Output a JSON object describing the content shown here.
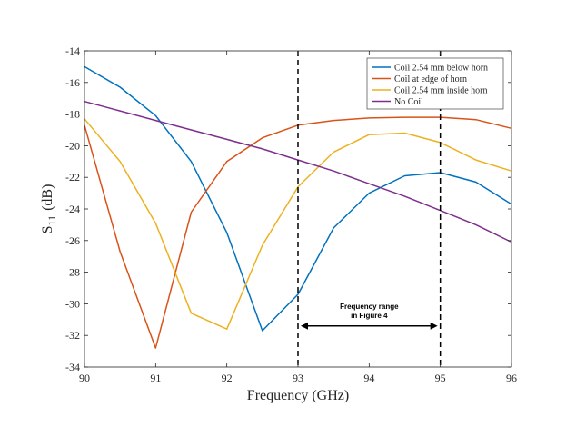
{
  "chart_data": {
    "type": "line",
    "title": "",
    "xlabel": "Frequency (GHz)",
    "ylabel_main": "S",
    "ylabel_sub": "11",
    "ylabel_unit": "(dB)",
    "xlim": [
      90,
      96
    ],
    "ylim": [
      -34,
      -14
    ],
    "xticks": [
      90,
      91,
      92,
      93,
      94,
      95,
      96
    ],
    "xtick_labels": [
      "90",
      "91",
      "92",
      "93",
      "94",
      "95",
      "96"
    ],
    "yticks": [
      -14,
      -16,
      -18,
      -20,
      -22,
      -24,
      -26,
      -28,
      -30,
      -32,
      -34
    ],
    "ytick_labels": [
      "-14",
      "-16",
      "-18",
      "-20",
      "-22",
      "-24",
      "-26",
      "-28",
      "-30",
      "-32",
      "-34"
    ],
    "grid": false,
    "legend_position": "top-right",
    "x": [
      90,
      90.5,
      91,
      91.5,
      92,
      92.5,
      93,
      93.5,
      94,
      94.5,
      95,
      95.5,
      96
    ],
    "series": [
      {
        "name": "Coil 2.54 mm below horn",
        "color": "#0072BD",
        "values": [
          -15.0,
          -16.3,
          -18.1,
          -21.0,
          -25.5,
          -31.7,
          -29.4,
          -25.2,
          -23.0,
          -21.9,
          -21.7,
          -22.3,
          -23.7
        ]
      },
      {
        "name": "Coil at edge of horn",
        "color": "#D95319",
        "values": [
          -18.7,
          -26.7,
          -32.8,
          -24.2,
          -21.0,
          -19.5,
          -18.7,
          -18.4,
          -18.25,
          -18.2,
          -18.2,
          -18.35,
          -18.9
        ]
      },
      {
        "name": "Coil 2.54 mm inside horn",
        "color": "#EDB120",
        "values": [
          -18.3,
          -21.0,
          -24.9,
          -30.6,
          -31.6,
          -26.3,
          -22.6,
          -20.4,
          -19.3,
          -19.2,
          -19.8,
          -20.9,
          -21.6
        ]
      },
      {
        "name": "No Coil",
        "color": "#7E2F8E",
        "values": [
          -17.2,
          -17.8,
          -18.4,
          -19.0,
          -19.6,
          -20.2,
          -20.9,
          -21.6,
          -22.4,
          -23.2,
          -24.1,
          -25.0,
          -26.1
        ]
      }
    ],
    "vlines": [
      93,
      95
    ],
    "annotation": {
      "line1": "Frequency range",
      "line2": "in Figure 4",
      "from": 93,
      "to": 95,
      "y": -31.4
    }
  }
}
